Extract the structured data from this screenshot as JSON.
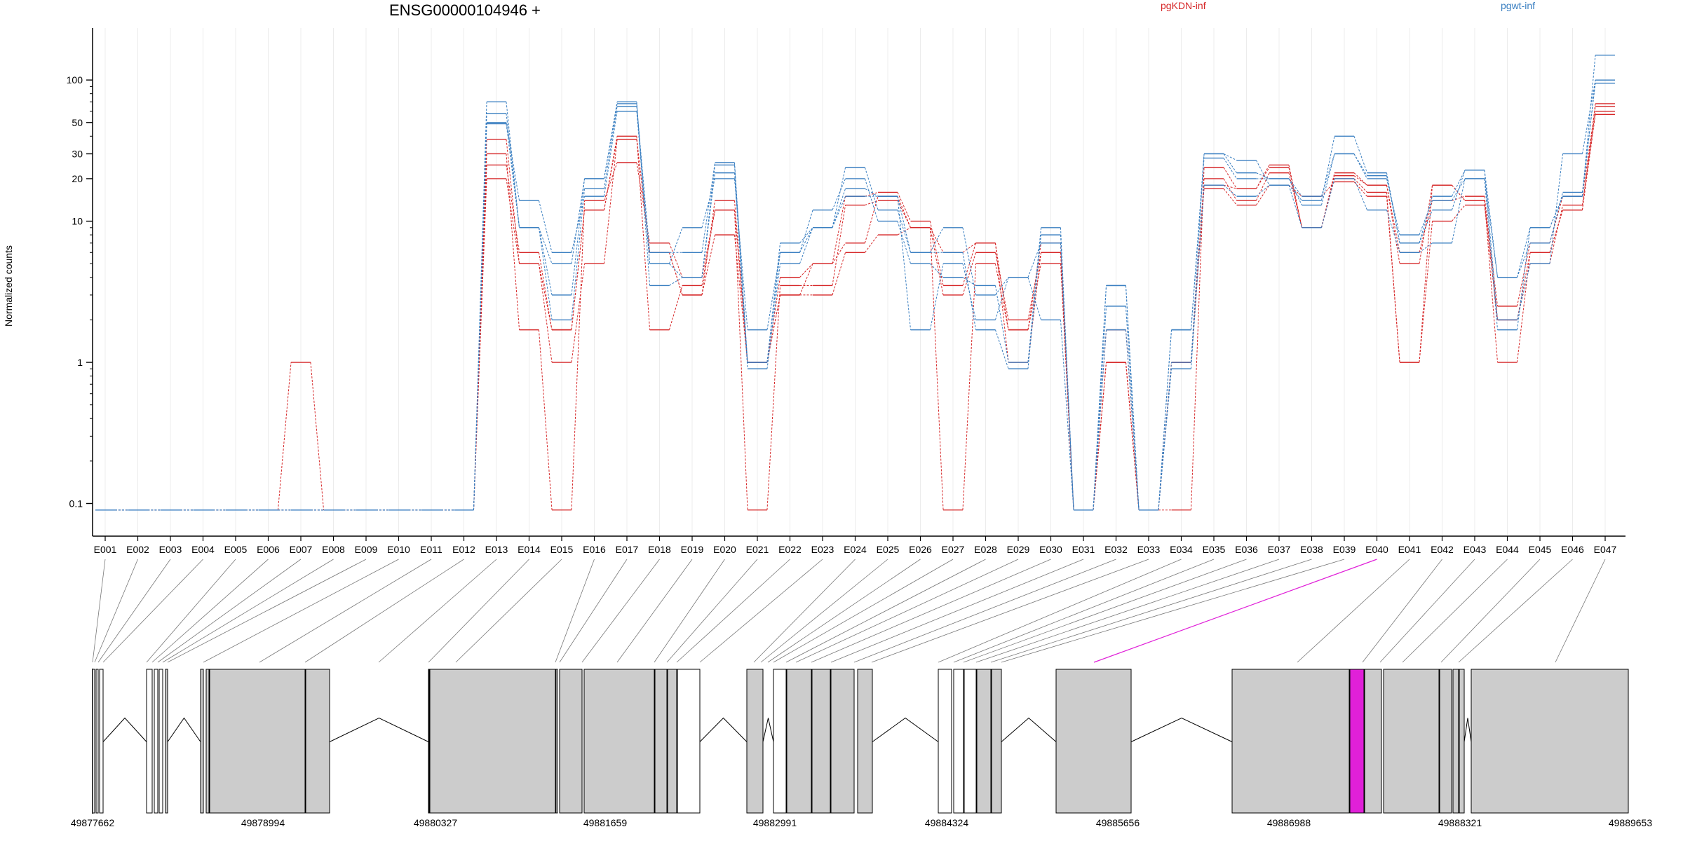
{
  "chart_data": {
    "type": "line",
    "title": "ENSG00000104946 +",
    "ylabel": "Normalized counts",
    "yscale": "log",
    "ylim": [
      0.08,
      190
    ],
    "yticks": [
      0.1,
      1,
      10,
      20,
      30,
      50,
      100
    ],
    "categories": [
      "E001",
      "E002",
      "E003",
      "E004",
      "E005",
      "E006",
      "E007",
      "E008",
      "E009",
      "E010",
      "E011",
      "E012",
      "E013",
      "E014",
      "E015",
      "E016",
      "E017",
      "E018",
      "E019",
      "E020",
      "E021",
      "E022",
      "E023",
      "E024",
      "E025",
      "E026",
      "E027",
      "E028",
      "E029",
      "E030",
      "E031",
      "E032",
      "E033",
      "E034",
      "E035",
      "E036",
      "E037",
      "E038",
      "E039",
      "E040",
      "E041",
      "E042",
      "E043",
      "E044",
      "E045",
      "E046",
      "E047"
    ],
    "legend": [
      {
        "label": "pgKDN-inf",
        "color": "#d62728"
      },
      {
        "label": "pgwt-inf",
        "color": "#3a7fc1"
      }
    ],
    "series": [
      {
        "group": "pgKDN-inf",
        "color": "#d62728",
        "values": [
          0.09,
          0.09,
          0.09,
          0.09,
          0.09,
          0.09,
          1,
          0.09,
          0.09,
          0.09,
          0.09,
          0.09,
          20,
          5,
          1,
          5,
          38,
          6,
          3,
          8,
          1,
          3,
          3,
          6,
          8,
          9,
          6,
          7,
          1,
          6,
          0.09,
          1,
          0.09,
          1,
          17,
          13,
          18,
          15,
          19,
          15,
          1,
          18,
          14,
          1,
          6,
          12,
          57
        ]
      },
      {
        "group": "pgKDN-inf",
        "color": "#d62728",
        "values": [
          0.09,
          0.09,
          0.09,
          0.09,
          0.09,
          0.09,
          0.09,
          0.09,
          0.09,
          0.09,
          0.09,
          0.09,
          25,
          6,
          1.7,
          12,
          40,
          1.7,
          3.5,
          12,
          1,
          3,
          5,
          7,
          15,
          9,
          0.09,
          5,
          1.7,
          5,
          0.09,
          1,
          0.09,
          1,
          20,
          14,
          22,
          9,
          20,
          16,
          1,
          10,
          13,
          2,
          5,
          13,
          60
        ]
      },
      {
        "group": "pgKDN-inf",
        "color": "#d62728",
        "values": [
          0.09,
          0.09,
          0.09,
          0.09,
          0.09,
          0.09,
          0.09,
          0.09,
          0.09,
          0.09,
          0.09,
          0.09,
          30,
          1.7,
          0.09,
          14,
          26,
          7,
          4,
          12,
          0.09,
          3.5,
          3.5,
          13,
          14,
          9,
          3,
          6,
          2,
          6,
          0.09,
          1.7,
          0.09,
          0.09,
          24,
          17,
          25,
          9,
          22,
          18,
          5,
          18,
          14,
          2.5,
          7,
          15,
          65
        ]
      },
      {
        "group": "pgKDN-inf",
        "color": "#d62728",
        "values": [
          0.09,
          0.09,
          0.09,
          0.09,
          0.09,
          0.09,
          0.09,
          0.09,
          0.09,
          0.09,
          0.09,
          0.09,
          38,
          5,
          1.7,
          12,
          38,
          6,
          3,
          14,
          1,
          4,
          5,
          15,
          16,
          10,
          3.5,
          7,
          1.7,
          7,
          0.09,
          1,
          0.09,
          1,
          18,
          17,
          24,
          9,
          21,
          18,
          6,
          14,
          15,
          2,
          6,
          12,
          68
        ]
      },
      {
        "group": "pgwt-inf",
        "color": "#3a7fc1",
        "values": [
          0.09,
          0.09,
          0.09,
          0.09,
          0.09,
          0.09,
          0.09,
          0.09,
          0.09,
          0.09,
          0.09,
          0.09,
          70,
          9,
          3,
          20,
          70,
          3.5,
          4,
          25,
          1,
          6,
          9,
          24,
          12,
          6,
          9,
          3,
          4,
          7,
          0.09,
          2.5,
          0.09,
          1,
          30,
          27,
          18,
          14,
          40,
          22,
          7,
          15,
          23,
          4,
          9,
          15,
          150
        ]
      },
      {
        "group": "pgwt-inf",
        "color": "#3a7fc1",
        "values": [
          0.09,
          0.09,
          0.09,
          0.09,
          0.09,
          0.09,
          0.09,
          0.09,
          0.09,
          0.09,
          0.09,
          0.09,
          50,
          14,
          6,
          15,
          60,
          5,
          9,
          20,
          1.7,
          6,
          12,
          20,
          10,
          5,
          4,
          3.5,
          1,
          9,
          0.09,
          3.5,
          0.09,
          1.7,
          30,
          22,
          20,
          15,
          30,
          20,
          8,
          14,
          20,
          4,
          7,
          16,
          95
        ]
      },
      {
        "group": "pgwt-inf",
        "color": "#3a7fc1",
        "values": [
          0.09,
          0.09,
          0.09,
          0.09,
          0.09,
          0.09,
          0.09,
          0.09,
          0.09,
          0.09,
          0.09,
          0.09,
          58,
          9,
          2,
          17,
          65,
          6,
          6,
          26,
          1,
          7,
          9,
          17,
          15,
          1.7,
          5,
          2,
          4,
          2,
          0.09,
          3.5,
          0.09,
          1.7,
          28,
          20,
          20,
          13,
          30,
          21,
          7,
          12,
          23,
          2,
          5,
          30,
          100
        ]
      },
      {
        "group": "pgwt-inf",
        "color": "#3a7fc1",
        "values": [
          0.09,
          0.09,
          0.09,
          0.09,
          0.09,
          0.09,
          0.09,
          0.09,
          0.09,
          0.09,
          0.09,
          0.09,
          49,
          9,
          5,
          20,
          68,
          5,
          4,
          22,
          0.9,
          5,
          9,
          15,
          15,
          6,
          6,
          1.7,
          0.9,
          8,
          0.09,
          1.7,
          0.09,
          0.9,
          18,
          15,
          18,
          9,
          20,
          12,
          6,
          7,
          20,
          1.7,
          9,
          15,
          100
        ]
      }
    ],
    "gene_model": {
      "genomic_ticks": [
        "49877662",
        "49878994",
        "49880327",
        "49881659",
        "49882991",
        "49884324",
        "49885656",
        "49886988",
        "49888321",
        "49889653"
      ],
      "highlight_exon": "E040",
      "highlight_color": "#e020d8",
      "exon_fill": "#cccccc"
    }
  }
}
